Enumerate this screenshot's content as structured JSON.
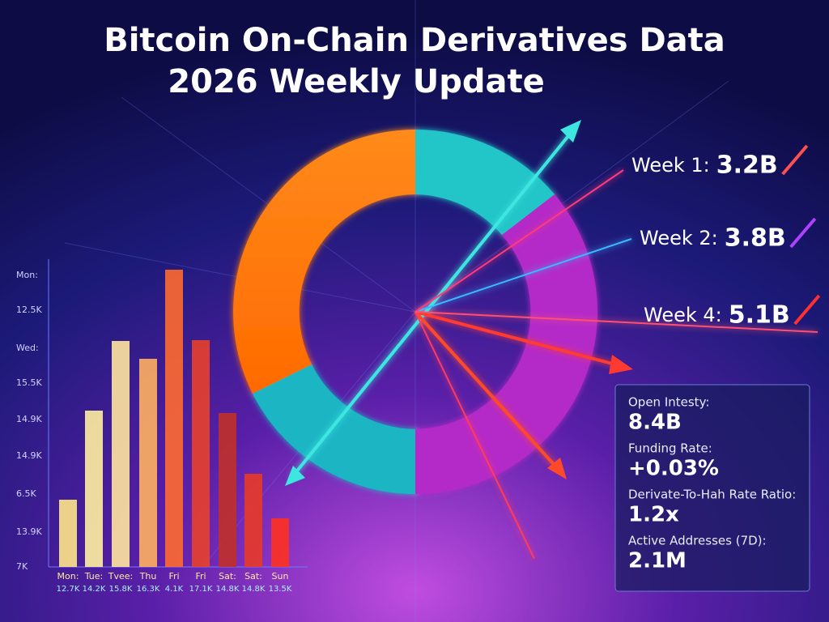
{
  "header": {
    "title_line1": "Bitcoin On-Chain Derivatives Data",
    "title_line2": "2026 Weekly Update"
  },
  "weeks": [
    {
      "label": "Week 1:",
      "value": "3.2B"
    },
    {
      "label": "Week 2:",
      "value": "3.8B"
    },
    {
      "label": "Week 4:",
      "value": "5.1B"
    }
  ],
  "axis_labels": [
    "Mon:",
    "12.5K",
    "Wed:",
    "15.5K",
    "14.9K",
    "14.9K",
    "6.5K",
    "13.9K",
    "7K"
  ],
  "bars": [
    {
      "day": "Mon:",
      "value": "12.7K"
    },
    {
      "day": "Tue:",
      "value": "14.2K"
    },
    {
      "day": "Tvee:",
      "value": "15.8K"
    },
    {
      "day": "Thu",
      "value": "16.3K"
    },
    {
      "day": "Fri",
      "value": "4.1K"
    },
    {
      "day": "Fri",
      "value": "17.1K"
    },
    {
      "day": "Sat:",
      "value": "14.8K"
    },
    {
      "day": "Sat:",
      "value": "14.8K"
    },
    {
      "day": "Sun",
      "value": "13.5K"
    }
  ],
  "stats": [
    {
      "label": "Open Intesty:",
      "value": "8.4B"
    },
    {
      "label": "Funding Rate:",
      "value": "+0.03%"
    },
    {
      "label": "Derivate-To-Hah Rate Ratio:",
      "value": "1.2x"
    },
    {
      "label": "Active Addresses (7D):",
      "value": "2.1M"
    }
  ]
}
